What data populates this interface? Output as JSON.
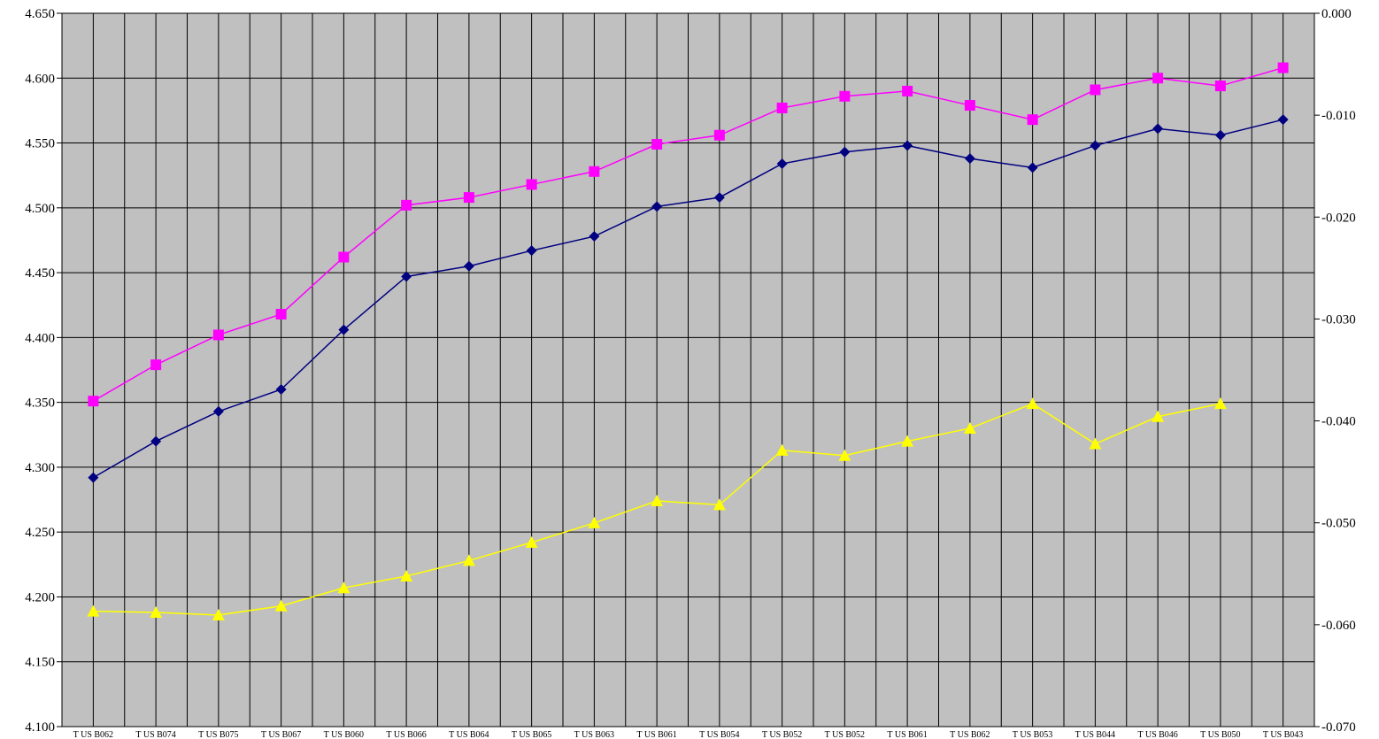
{
  "chart_data": {
    "type": "line",
    "categories": [
      "T US B062",
      "T US B074",
      "T US B075",
      "T US B067",
      "T US B060",
      "T US B066",
      "T US B064",
      "T US B065",
      "T US B063",
      "T US B061",
      "T US B054",
      "T US B052",
      "T US B052",
      "T US B061",
      "T US B062",
      "T US B053",
      "T US B044",
      "T US B046",
      "T US B050",
      "T US B043"
    ],
    "y_left": {
      "min": 4.1,
      "max": 4.65,
      "step": 0.05,
      "ticks": [
        "4.100",
        "4.150",
        "4.200",
        "4.250",
        "4.300",
        "4.350",
        "4.400",
        "4.450",
        "4.500",
        "4.550",
        "4.600",
        "4.650"
      ]
    },
    "y_right": {
      "min": -0.07,
      "max": 0.0,
      "step": 0.01,
      "ticks": [
        "-0.070",
        "-0.060",
        "-0.050",
        "-0.040",
        "-0.030",
        "-0.020",
        "-0.010",
        "0.000"
      ]
    },
    "grid": true,
    "plot_background": "#c0c0c0",
    "series": [
      {
        "color": "#ff00ff",
        "marker": "square",
        "axis": "left",
        "values": [
          4.351,
          4.379,
          4.402,
          4.418,
          4.462,
          4.502,
          4.508,
          4.518,
          4.528,
          4.549,
          4.556,
          4.577,
          4.586,
          4.59,
          4.579,
          4.568,
          4.591,
          4.6,
          4.594,
          4.608
        ]
      },
      {
        "color": "#000080",
        "marker": "diamond",
        "axis": "left",
        "values": [
          4.292,
          4.32,
          4.343,
          4.36,
          4.406,
          4.447,
          4.455,
          4.467,
          4.478,
          4.501,
          4.508,
          4.534,
          4.543,
          4.548,
          4.538,
          4.531,
          4.548,
          4.561,
          4.556,
          4.568
        ]
      },
      {
        "color": "#ffff00",
        "marker": "triangle",
        "axis": "left",
        "values": [
          4.189,
          4.188,
          4.186,
          4.193,
          4.207,
          4.216,
          4.228,
          4.242,
          4.257,
          4.274,
          4.271,
          4.313,
          4.309,
          4.32,
          4.33,
          4.349,
          4.318,
          4.339,
          4.349,
          null
        ]
      }
    ]
  }
}
